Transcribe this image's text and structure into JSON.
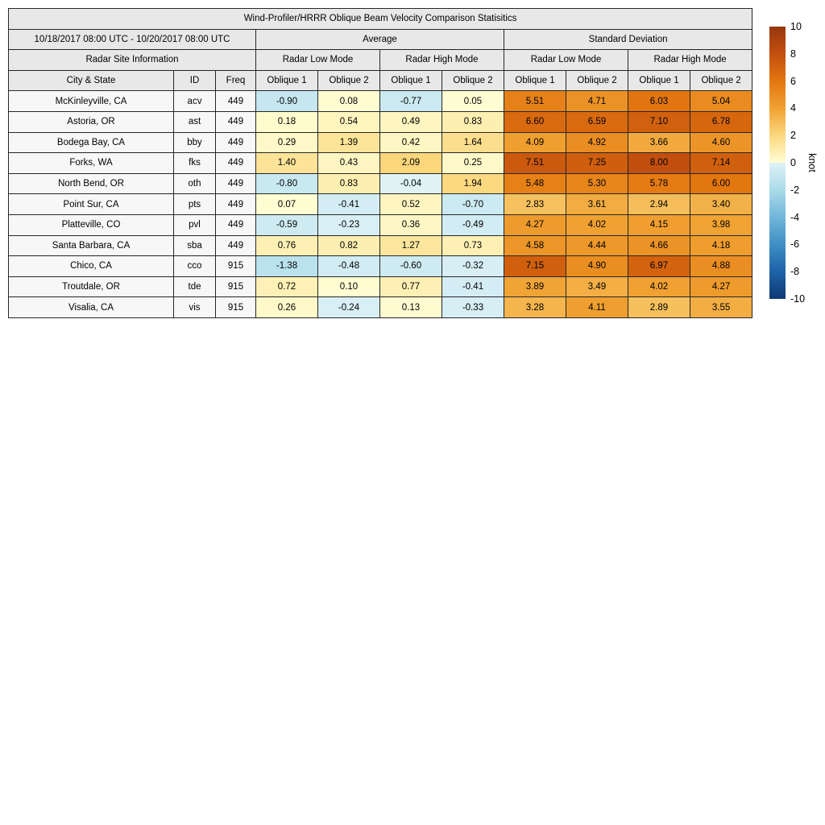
{
  "chart_data": {
    "type": "table",
    "title": "Wind-Profiler/HRRR Oblique Beam Velocity Comparison Statisitics",
    "date_range": "10/18/2017 08:00 UTC - 10/20/2017 08:00 UTC",
    "group_headers": [
      "Average",
      "Standard Deviation"
    ],
    "site_info_header": "Radar Site Information",
    "mode_headers": [
      "Radar Low Mode",
      "Radar High Mode",
      "Radar Low Mode",
      "Radar High Mode"
    ],
    "columns": [
      "City & State",
      "ID",
      "Freq",
      "Oblique 1",
      "Oblique 2",
      "Oblique 1",
      "Oblique 2",
      "Oblique 1",
      "Oblique 2",
      "Oblique 1",
      "Oblique 2"
    ],
    "rows": [
      {
        "city": "McKinleyville, CA",
        "id": "acv",
        "freq": "449",
        "values": [
          "-0.90",
          "0.08",
          "-0.77",
          "0.05",
          "5.51",
          "4.71",
          "6.03",
          "5.04"
        ]
      },
      {
        "city": "Astoria, OR",
        "id": "ast",
        "freq": "449",
        "values": [
          "0.18",
          "0.54",
          "0.49",
          "0.83",
          "6.60",
          "6.59",
          "7.10",
          "6.78"
        ]
      },
      {
        "city": "Bodega Bay, CA",
        "id": "bby",
        "freq": "449",
        "values": [
          "0.29",
          "1.39",
          "0.42",
          "1.64",
          "4.09",
          "4.92",
          "3.66",
          "4.60"
        ]
      },
      {
        "city": "Forks, WA",
        "id": "fks",
        "freq": "449",
        "values": [
          "1.40",
          "0.43",
          "2.09",
          "0.25",
          "7.51",
          "7.25",
          "8.00",
          "7.14"
        ]
      },
      {
        "city": "North Bend, OR",
        "id": "oth",
        "freq": "449",
        "values": [
          "-0.80",
          "0.83",
          "-0.04",
          "1.94",
          "5.48",
          "5.30",
          "5.78",
          "6.00"
        ]
      },
      {
        "city": "Point Sur, CA",
        "id": "pts",
        "freq": "449",
        "values": [
          "0.07",
          "-0.41",
          "0.52",
          "-0.70",
          "2.83",
          "3.61",
          "2.94",
          "3.40"
        ]
      },
      {
        "city": "Platteville, CO",
        "id": "pvl",
        "freq": "449",
        "values": [
          "-0.59",
          "-0.23",
          "0.36",
          "-0.49",
          "4.27",
          "4.02",
          "4.15",
          "3.98"
        ]
      },
      {
        "city": "Santa Barbara, CA",
        "id": "sba",
        "freq": "449",
        "values": [
          "0.76",
          "0.82",
          "1.27",
          "0.73",
          "4.58",
          "4.44",
          "4.66",
          "4.18"
        ]
      },
      {
        "city": "Chico, CA",
        "id": "cco",
        "freq": "915",
        "values": [
          "-1.38",
          "-0.48",
          "-0.60",
          "-0.32",
          "7.15",
          "4.90",
          "6.97",
          "4.88"
        ]
      },
      {
        "city": "Troutdale, OR",
        "id": "tde",
        "freq": "915",
        "values": [
          "0.72",
          "0.10",
          "0.77",
          "-0.41",
          "3.89",
          "3.49",
          "4.02",
          "4.27"
        ]
      },
      {
        "city": "Visalia, CA",
        "id": "vis",
        "freq": "915",
        "values": [
          "0.26",
          "-0.24",
          "0.13",
          "-0.33",
          "3.28",
          "4.11",
          "2.89",
          "3.55"
        ]
      }
    ],
    "colorbar": {
      "label": "knot",
      "min": -10,
      "max": 10,
      "ticks": [
        "10",
        "8",
        "6",
        "4",
        "2",
        "0",
        "-2",
        "-4",
        "-6",
        "-8",
        "-10"
      ],
      "stops": [
        {
          "v": -10,
          "color": "#0e3a73"
        },
        {
          "v": -8,
          "color": "#1e62a8"
        },
        {
          "v": -6,
          "color": "#3f8fc4"
        },
        {
          "v": -4,
          "color": "#72b6da"
        },
        {
          "v": -2,
          "color": "#aadbe9"
        },
        {
          "v": -0.05,
          "color": "#ddf1f6"
        },
        {
          "v": 0.05,
          "color": "#fffdd3"
        },
        {
          "v": 2,
          "color": "#fbd87e"
        },
        {
          "v": 4,
          "color": "#f0a132"
        },
        {
          "v": 6,
          "color": "#e2760f"
        },
        {
          "v": 8,
          "color": "#c34f0e"
        },
        {
          "v": 10,
          "color": "#96370d"
        }
      ]
    }
  }
}
